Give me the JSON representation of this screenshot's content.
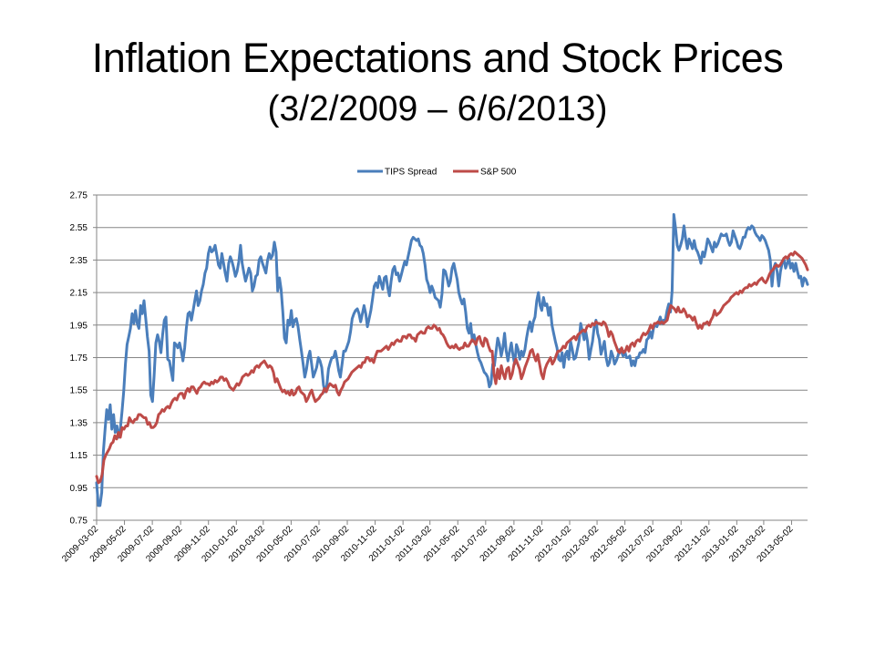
{
  "slide": {
    "title": "Inflation Expectations and Stock Prices",
    "subtitle": "(3/2/2009 – 6/6/2013)"
  },
  "chart_data": {
    "type": "line",
    "title": "Inflation Expectations and Stock Prices",
    "subtitle": "(3/2/2009 – 6/6/2013)",
    "xlabel": "",
    "ylabel": "",
    "x_range": [
      "2009-03-02",
      "2013-06-06"
    ],
    "ylim": [
      0.75,
      2.75
    ],
    "y_ticks": [
      "0.75",
      "0.95",
      "1.15",
      "1.35",
      "1.55",
      "1.75",
      "1.95",
      "2.15",
      "2.35",
      "2.55",
      "2.75"
    ],
    "x_ticks": [
      "2009-03-02",
      "2009-05-02",
      "2009-07-02",
      "2009-09-02",
      "2009-11-02",
      "2010-01-02",
      "2010-03-02",
      "2010-05-02",
      "2010-07-02",
      "2010-09-02",
      "2010-11-02",
      "2011-01-02",
      "2011-03-02",
      "2011-05-02",
      "2011-07-02",
      "2011-09-02",
      "2011-11-02",
      "2012-01-02",
      "2012-03-02",
      "2012-05-02",
      "2012-07-02",
      "2012-09-02",
      "2012-11-02",
      "2013-01-02",
      "2013-03-02",
      "2013-05-02"
    ],
    "grid": true,
    "legend_position": "top",
    "series": [
      {
        "name": "TIPS Spread",
        "color": "#4a7ebb",
        "values": [
          0.98,
          0.84,
          0.84,
          0.92,
          1.17,
          1.31,
          1.43,
          1.37,
          1.46,
          1.31,
          1.4,
          1.29,
          1.33,
          1.26,
          1.31,
          1.42,
          1.54,
          1.71,
          1.83,
          1.88,
          1.93,
          2.02,
          1.96,
          2.04,
          1.96,
          1.93,
          2.07,
          2.02,
          2.1,
          1.99,
          1.88,
          1.79,
          1.52,
          1.48,
          1.64,
          1.84,
          1.89,
          1.85,
          1.78,
          1.89,
          1.98,
          2.0,
          1.74,
          1.73,
          1.67,
          1.61,
          1.84,
          1.83,
          1.81,
          1.84,
          1.79,
          1.73,
          1.81,
          1.93,
          2.02,
          2.03,
          1.98,
          2.04,
          2.1,
          2.16,
          2.07,
          2.1,
          2.16,
          2.2,
          2.27,
          2.3,
          2.39,
          2.43,
          2.4,
          2.41,
          2.44,
          2.38,
          2.32,
          2.3,
          2.39,
          2.33,
          2.27,
          2.22,
          2.33,
          2.37,
          2.34,
          2.3,
          2.25,
          2.28,
          2.34,
          2.44,
          2.33,
          2.27,
          2.22,
          2.26,
          2.3,
          2.27,
          2.16,
          2.19,
          2.25,
          2.26,
          2.35,
          2.37,
          2.33,
          2.3,
          2.27,
          2.35,
          2.39,
          2.36,
          2.38,
          2.46,
          2.4,
          2.16,
          2.24,
          2.17,
          2.03,
          1.87,
          1.84,
          1.98,
          1.95,
          2.04,
          1.94,
          1.98,
          1.99,
          1.94,
          1.86,
          1.79,
          1.71,
          1.63,
          1.68,
          1.75,
          1.79,
          1.71,
          1.63,
          1.66,
          1.69,
          1.75,
          1.73,
          1.69,
          1.58,
          1.54,
          1.58,
          1.68,
          1.72,
          1.75,
          1.75,
          1.79,
          1.74,
          1.67,
          1.63,
          1.71,
          1.79,
          1.79,
          1.82,
          1.85,
          1.91,
          1.99,
          2.02,
          2.04,
          2.05,
          2.02,
          1.97,
          2.02,
          2.07,
          2.02,
          1.94,
          1.99,
          2.04,
          2.11,
          2.19,
          2.21,
          2.18,
          2.25,
          2.21,
          2.17,
          2.24,
          2.25,
          2.18,
          2.13,
          2.22,
          2.29,
          2.31,
          2.26,
          2.27,
          2.22,
          2.26,
          2.3,
          2.34,
          2.32,
          2.37,
          2.42,
          2.47,
          2.49,
          2.48,
          2.47,
          2.48,
          2.44,
          2.43,
          2.39,
          2.32,
          2.23,
          2.2,
          2.15,
          2.19,
          2.16,
          2.12,
          2.11,
          2.1,
          2.06,
          2.14,
          2.29,
          2.28,
          2.24,
          2.19,
          2.22,
          2.3,
          2.33,
          2.28,
          2.23,
          2.15,
          2.11,
          2.08,
          2.11,
          2.03,
          1.93,
          1.9,
          1.96,
          1.85,
          1.89,
          1.83,
          1.78,
          1.74,
          1.72,
          1.69,
          1.66,
          1.65,
          1.63,
          1.57,
          1.59,
          1.71,
          1.7,
          1.79,
          1.87,
          1.83,
          1.76,
          1.81,
          1.9,
          1.79,
          1.73,
          1.79,
          1.84,
          1.76,
          1.71,
          1.83,
          1.8,
          1.74,
          1.79,
          1.76,
          1.8,
          1.87,
          1.93,
          1.97,
          1.91,
          1.97,
          2.0,
          2.1,
          2.15,
          2.07,
          2.04,
          2.12,
          2.07,
          2.08,
          2.01,
          2.06,
          1.95,
          1.9,
          1.85,
          1.81,
          1.74,
          1.73,
          1.78,
          1.69,
          1.77,
          1.79,
          1.74,
          1.85,
          1.8,
          1.74,
          1.75,
          1.8,
          1.85,
          1.96,
          1.91,
          1.86,
          1.91,
          1.85,
          1.74,
          1.8,
          1.85,
          1.94,
          1.98,
          1.9,
          1.86,
          1.77,
          1.81,
          1.85,
          1.75,
          1.7,
          1.72,
          1.79,
          1.76,
          1.71,
          1.73,
          1.76,
          1.8,
          1.79,
          1.76,
          1.79,
          1.75,
          1.75,
          1.76,
          1.7,
          1.73,
          1.7,
          1.75,
          1.75,
          1.78,
          1.78,
          1.8,
          1.78,
          1.86,
          1.87,
          1.91,
          1.87,
          1.93,
          1.96,
          1.94,
          1.97,
          2.0,
          1.96,
          1.98,
          1.98,
          2.04,
          2.08,
          2.03,
          2.16,
          2.63,
          2.55,
          2.44,
          2.41,
          2.44,
          2.48,
          2.56,
          2.48,
          2.42,
          2.48,
          2.45,
          2.42,
          2.47,
          2.42,
          2.4,
          2.37,
          2.33,
          2.4,
          2.37,
          2.42,
          2.48,
          2.46,
          2.43,
          2.4,
          2.46,
          2.43,
          2.45,
          2.48,
          2.51,
          2.5,
          2.5,
          2.51,
          2.47,
          2.44,
          2.46,
          2.53,
          2.5,
          2.47,
          2.43,
          2.42,
          2.45,
          2.49,
          2.49,
          2.53,
          2.55,
          2.54,
          2.56,
          2.55,
          2.52,
          2.5,
          2.49,
          2.47,
          2.5,
          2.49,
          2.47,
          2.44,
          2.41,
          2.35,
          2.19,
          2.3,
          2.33,
          2.28,
          2.19,
          2.28,
          2.33,
          2.36,
          2.3,
          2.33,
          2.36,
          2.3,
          2.33,
          2.28,
          2.33,
          2.28,
          2.24,
          2.25,
          2.19,
          2.24,
          2.23,
          2.2
        ]
      },
      {
        "name": "S&P 500",
        "color": "#be4b48",
        "values": [
          1.02,
          0.98,
          0.99,
          1.03,
          1.12,
          1.15,
          1.17,
          1.19,
          1.22,
          1.23,
          1.27,
          1.25,
          1.29,
          1.26,
          1.32,
          1.31,
          1.33,
          1.33,
          1.38,
          1.36,
          1.35,
          1.37,
          1.37,
          1.4,
          1.4,
          1.39,
          1.38,
          1.38,
          1.34,
          1.35,
          1.32,
          1.32,
          1.33,
          1.35,
          1.4,
          1.41,
          1.43,
          1.42,
          1.44,
          1.45,
          1.44,
          1.47,
          1.49,
          1.5,
          1.49,
          1.52,
          1.53,
          1.53,
          1.5,
          1.54,
          1.56,
          1.54,
          1.57,
          1.57,
          1.55,
          1.53,
          1.56,
          1.57,
          1.59,
          1.6,
          1.59,
          1.59,
          1.58,
          1.6,
          1.59,
          1.61,
          1.6,
          1.61,
          1.63,
          1.63,
          1.61,
          1.62,
          1.6,
          1.57,
          1.56,
          1.55,
          1.57,
          1.59,
          1.58,
          1.6,
          1.63,
          1.64,
          1.65,
          1.64,
          1.65,
          1.67,
          1.66,
          1.69,
          1.7,
          1.69,
          1.71,
          1.72,
          1.73,
          1.71,
          1.69,
          1.7,
          1.69,
          1.66,
          1.6,
          1.62,
          1.59,
          1.56,
          1.54,
          1.55,
          1.53,
          1.54,
          1.52,
          1.55,
          1.52,
          1.53,
          1.56,
          1.57,
          1.54,
          1.53,
          1.52,
          1.48,
          1.5,
          1.53,
          1.55,
          1.51,
          1.48,
          1.49,
          1.5,
          1.52,
          1.53,
          1.56,
          1.54,
          1.57,
          1.59,
          1.58,
          1.57,
          1.58,
          1.54,
          1.52,
          1.55,
          1.57,
          1.6,
          1.61,
          1.62,
          1.64,
          1.66,
          1.67,
          1.68,
          1.69,
          1.7,
          1.69,
          1.72,
          1.72,
          1.75,
          1.75,
          1.73,
          1.74,
          1.72,
          1.76,
          1.79,
          1.79,
          1.79,
          1.8,
          1.81,
          1.82,
          1.8,
          1.82,
          1.84,
          1.83,
          1.85,
          1.86,
          1.85,
          1.85,
          1.88,
          1.88,
          1.87,
          1.89,
          1.89,
          1.87,
          1.87,
          1.85,
          1.89,
          1.9,
          1.91,
          1.9,
          1.9,
          1.93,
          1.94,
          1.93,
          1.93,
          1.95,
          1.94,
          1.92,
          1.93,
          1.9,
          1.89,
          1.87,
          1.84,
          1.82,
          1.81,
          1.82,
          1.81,
          1.83,
          1.81,
          1.8,
          1.81,
          1.81,
          1.84,
          1.82,
          1.82,
          1.84,
          1.86,
          1.85,
          1.83,
          1.87,
          1.88,
          1.84,
          1.82,
          1.87,
          1.86,
          1.82,
          1.79,
          1.79,
          1.65,
          1.59,
          1.68,
          1.62,
          1.7,
          1.65,
          1.62,
          1.68,
          1.69,
          1.62,
          1.65,
          1.71,
          1.74,
          1.71,
          1.68,
          1.62,
          1.65,
          1.69,
          1.72,
          1.75,
          1.79,
          1.8,
          1.76,
          1.73,
          1.77,
          1.71,
          1.65,
          1.62,
          1.68,
          1.71,
          1.73,
          1.75,
          1.71,
          1.73,
          1.76,
          1.79,
          1.79,
          1.8,
          1.82,
          1.81,
          1.84,
          1.85,
          1.86,
          1.87,
          1.88,
          1.86,
          1.89,
          1.9,
          1.91,
          1.92,
          1.91,
          1.94,
          1.95,
          1.94,
          1.96,
          1.95,
          1.97,
          1.96,
          1.96,
          1.95,
          1.97,
          1.96,
          1.93,
          1.88,
          1.91,
          1.89,
          1.85,
          1.82,
          1.79,
          1.78,
          1.81,
          1.78,
          1.79,
          1.82,
          1.79,
          1.83,
          1.84,
          1.82,
          1.85,
          1.86,
          1.85,
          1.88,
          1.9,
          1.89,
          1.9,
          1.92,
          1.95,
          1.93,
          1.96,
          1.96,
          1.97,
          1.96,
          1.97,
          1.96,
          1.97,
          1.98,
          2.03,
          2.07,
          2.06,
          2.05,
          2.03,
          2.06,
          2.03,
          2.03,
          2.05,
          2.03,
          2.0,
          2.01,
          2.0,
          1.98,
          2.0,
          1.96,
          1.93,
          1.95,
          1.93,
          1.96,
          1.96,
          1.97,
          1.95,
          1.98,
          2.0,
          2.04,
          2.01,
          2.02,
          2.03,
          2.05,
          2.07,
          2.08,
          2.09,
          2.1,
          2.12,
          2.13,
          2.14,
          2.15,
          2.14,
          2.16,
          2.15,
          2.17,
          2.18,
          2.18,
          2.2,
          2.19,
          2.2,
          2.21,
          2.2,
          2.22,
          2.23,
          2.24,
          2.22,
          2.21,
          2.23,
          2.26,
          2.28,
          2.29,
          2.31,
          2.32,
          2.31,
          2.32,
          2.34,
          2.36,
          2.37,
          2.36,
          2.38,
          2.39,
          2.38,
          2.4,
          2.39,
          2.38,
          2.37,
          2.36,
          2.34,
          2.32,
          2.29
        ]
      }
    ]
  }
}
